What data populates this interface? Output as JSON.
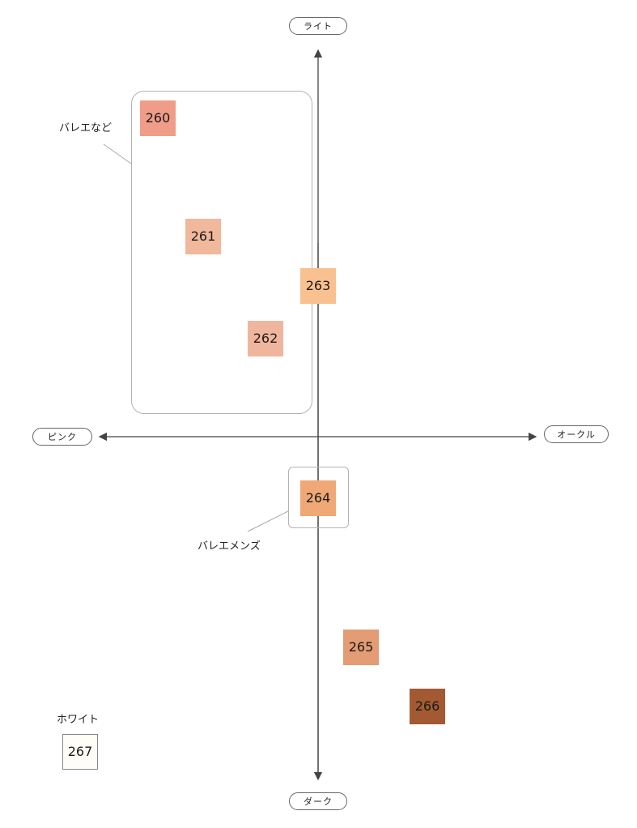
{
  "axes": {
    "top": "ライト",
    "bottom": "ダーク",
    "left": "ピンク",
    "right": "オークル"
  },
  "groups": {
    "ballet": "バレエなど",
    "ballet_mens": "バレエメンズ",
    "white": "ホワイト"
  },
  "swatches": [
    {
      "code": "260",
      "color": "#ef9d88"
    },
    {
      "code": "261",
      "color": "#f1b89c"
    },
    {
      "code": "262",
      "color": "#f0b59d"
    },
    {
      "code": "263",
      "color": "#f9c190"
    },
    {
      "code": "264",
      "color": "#efa876"
    },
    {
      "code": "265",
      "color": "#e39c73"
    },
    {
      "code": "266",
      "color": "#a35a32"
    },
    {
      "code": "267",
      "color": "#fffef6"
    }
  ]
}
